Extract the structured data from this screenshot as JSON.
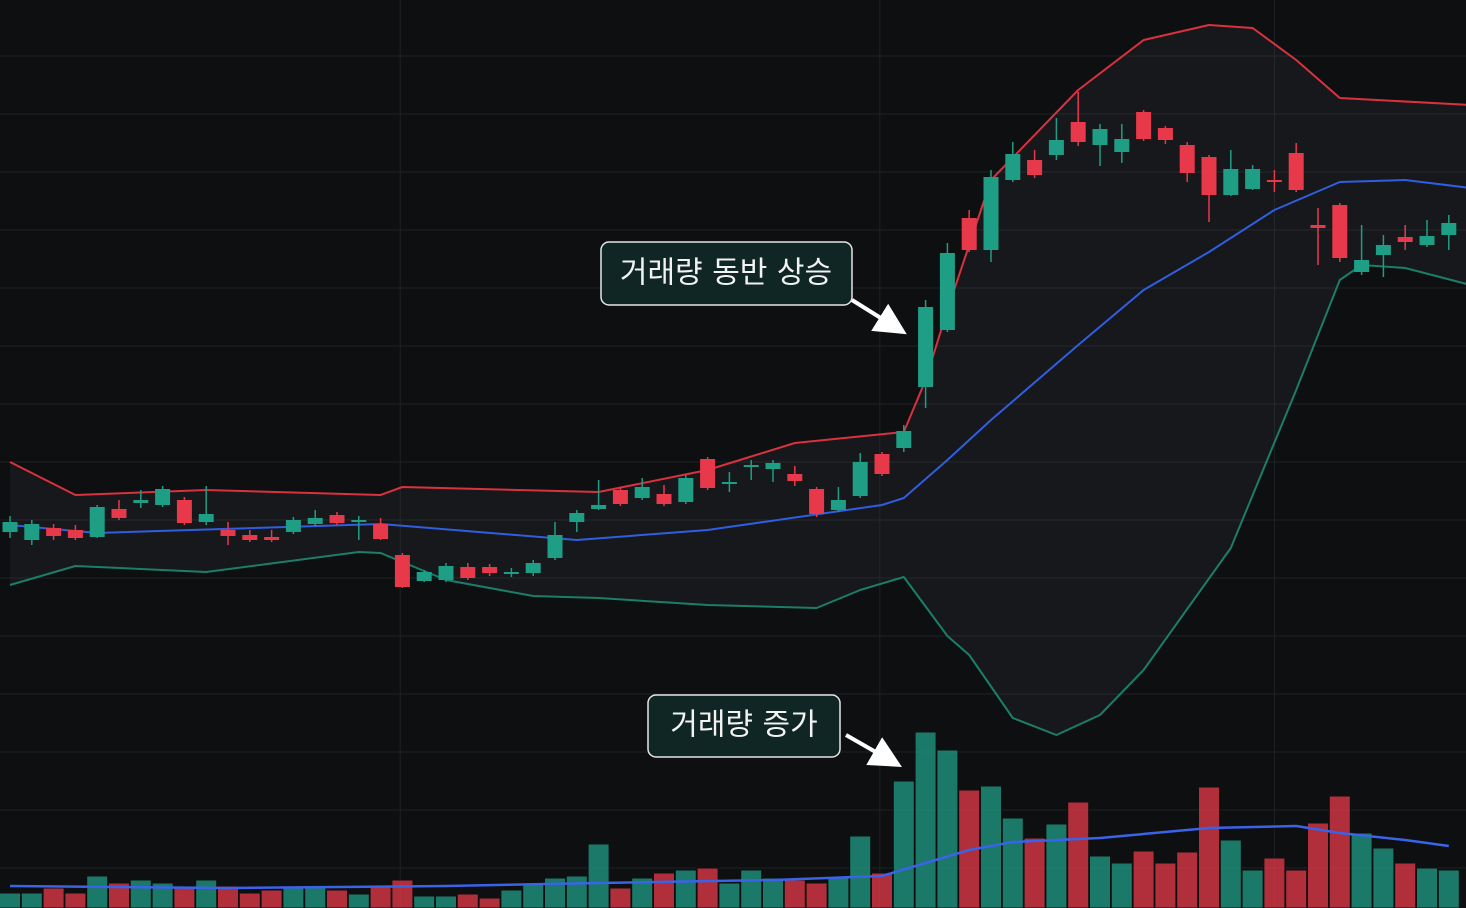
{
  "chart_data": {
    "type": "candlestick",
    "ylim": [
      0,
      908
    ],
    "yticks": [
      40,
      98,
      156,
      214,
      272,
      330,
      388,
      446,
      504,
      562,
      620,
      678,
      736,
      794,
      852
    ],
    "xticks": [
      17.9,
      39.9,
      58
    ],
    "grid": true,
    "up_color": "#1f9e86",
    "down_color": "#e8394a",
    "open": [
      376,
      368,
      380,
      378,
      371,
      399,
      405,
      403,
      408,
      386,
      378,
      373,
      371,
      376,
      384,
      393,
      386,
      384,
      353,
      327,
      328,
      341,
      341,
      334,
      335,
      350,
      386,
      399,
      418,
      410,
      414,
      406,
      449,
      424,
      441,
      439,
      434,
      419,
      398,
      412,
      454,
      460,
      521,
      578,
      690,
      658,
      728,
      748,
      753,
      786,
      763,
      756,
      796,
      780,
      763,
      751,
      713,
      719,
      728,
      755,
      683,
      703,
      636,
      653,
      671,
      663,
      673
    ],
    "high": [
      392,
      388,
      384,
      383,
      403,
      408,
      418,
      422,
      411,
      422,
      386,
      378,
      378,
      391,
      398,
      396,
      392,
      390,
      355,
      338,
      345,
      345,
      344,
      340,
      348,
      386,
      398,
      428,
      421,
      430,
      423,
      433,
      451,
      436,
      448,
      448,
      442,
      421,
      421,
      455,
      456,
      483,
      608,
      665,
      698,
      738,
      766,
      758,
      790,
      816,
      784,
      784,
      798,
      782,
      766,
      753,
      758,
      743,
      738,
      765,
      700,
      705,
      683,
      673,
      683,
      688,
      693
    ],
    "low": [
      370,
      363,
      368,
      368,
      370,
      388,
      400,
      401,
      383,
      383,
      363,
      366,
      366,
      374,
      382,
      383,
      368,
      368,
      320,
      326,
      326,
      328,
      332,
      331,
      332,
      348,
      376,
      398,
      402,
      408,
      402,
      404,
      418,
      416,
      428,
      426,
      422,
      391,
      396,
      410,
      432,
      456,
      500,
      576,
      656,
      646,
      726,
      730,
      748,
      762,
      742,
      745,
      767,
      764,
      726,
      686,
      712,
      718,
      716,
      716,
      643,
      646,
      633,
      631,
      658,
      661,
      658
    ],
    "close": [
      386,
      384,
      372,
      370,
      401,
      390,
      408,
      419,
      385,
      394,
      372,
      368,
      368,
      388,
      390,
      385,
      388,
      369,
      321,
      336,
      342,
      330,
      335,
      336,
      345,
      373,
      395,
      403,
      404,
      421,
      404,
      430,
      420,
      426,
      443,
      445,
      427,
      394,
      408,
      446,
      434,
      477,
      601,
      655,
      658,
      731,
      754,
      733,
      768,
      766,
      779,
      769,
      769,
      768,
      735,
      713,
      739,
      739,
      726,
      718,
      680,
      650,
      648,
      663,
      666,
      672,
      685
    ],
    "overlays": [
      {
        "color": "#d8323f",
        "x": [
          0,
          3,
          9,
          17,
          18,
          27,
          32,
          36,
          41,
          42,
          43,
          45,
          49,
          52,
          55,
          57,
          59,
          61,
          67
        ],
        "values": [
          446,
          413,
          418,
          413,
          421,
          416,
          438,
          465,
          476,
          528,
          598,
          728,
          818,
          868,
          883,
          880,
          848,
          810,
          803
        ]
      },
      {
        "color": "#2f5ee0",
        "x": [
          0,
          4,
          17,
          26,
          32,
          40,
          41,
          43,
          45,
          49,
          52,
          55,
          58,
          61,
          64,
          67
        ],
        "values": [
          383,
          375,
          384,
          368,
          378,
          403,
          410,
          448,
          488,
          563,
          618,
          656,
          698,
          726,
          728,
          720
        ]
      },
      {
        "color": "#1b7e68",
        "x": [
          0,
          3,
          9,
          16,
          17,
          20,
          24,
          27,
          32,
          37,
          39,
          41,
          43,
          44,
          46,
          48,
          50,
          52,
          56,
          59,
          61,
          62,
          64,
          67
        ],
        "values": [
          323,
          342,
          336,
          356,
          355,
          328,
          312,
          310,
          303,
          300,
          318,
          331,
          272,
          253,
          190,
          173,
          193,
          238,
          360,
          518,
          628,
          643,
          640,
          623
        ]
      }
    ],
    "volume": {
      "values": [
        15,
        15,
        20,
        15,
        32,
        25,
        28,
        25,
        20,
        28,
        22,
        15,
        18,
        20,
        22,
        18,
        14,
        22,
        28,
        12,
        12,
        14,
        10,
        18,
        25,
        30,
        32,
        64,
        20,
        30,
        35,
        38,
        40,
        25,
        38,
        30,
        28,
        25,
        30,
        72,
        35,
        127,
        176,
        158,
        118,
        122,
        90,
        70,
        84,
        106,
        52,
        45,
        57,
        45,
        56,
        121,
        68,
        38,
        50,
        38,
        85,
        112,
        75,
        60,
        45,
        40,
        38
      ],
      "ma": {
        "color": "#3a63e8",
        "x": [
          0,
          10,
          20,
          27,
          35,
          40,
          42,
          44,
          46,
          50,
          55,
          59,
          61,
          64,
          66
        ],
        "values": [
          22,
          20,
          22,
          25,
          28,
          32,
          45,
          58,
          66,
          70,
          80,
          82,
          75,
          68,
          62
        ]
      }
    },
    "annotations": [
      {
        "text": "거래량 동반 상승"
      },
      {
        "text": "거래량 증가"
      }
    ]
  }
}
